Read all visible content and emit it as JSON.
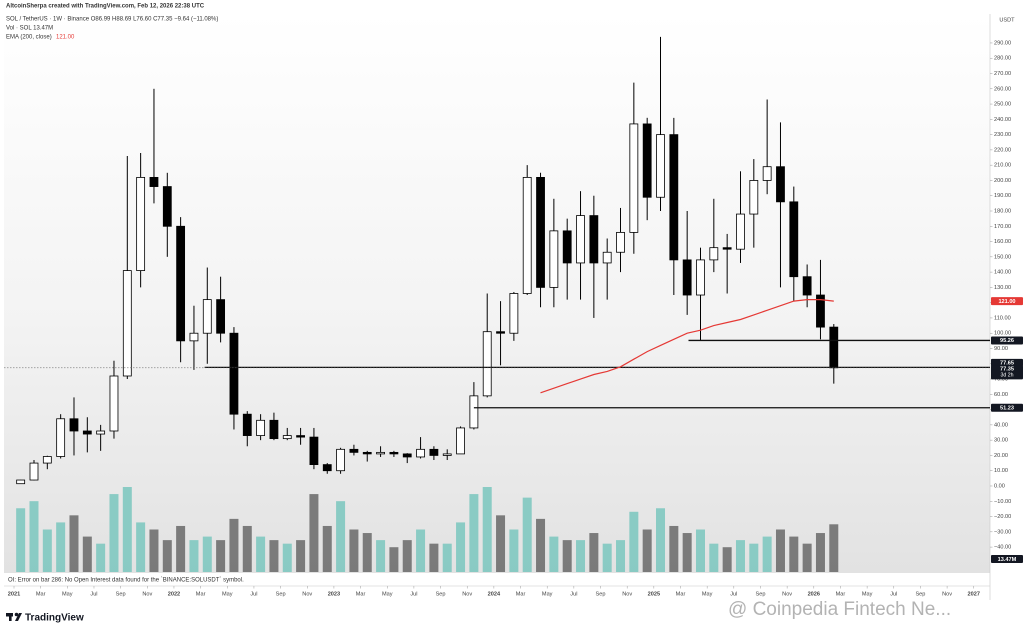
{
  "chart_data": {
    "type": "candlestick",
    "attribution": "AltcoinSherpa created with TradingView.com, Feb 12, 2026 22:38 UTC",
    "symbol_line": "SOL / TetherUS · 1W · Binance  O86.99 H88.69 L76.60 C77.35 −9.64 (−11.08%)",
    "volume_line": "Vol · SOL 13.47M",
    "ema_name": "EMA (200, close)",
    "ema_value_label": "121.00",
    "currency": "USDT",
    "oi_note": "OI: Error on bar 286: No Open Interest data found for the `BINANCE:SOLUSDT` symbol.",
    "brand": "TradingView",
    "watermark": "@ Coinpedia Fintech Ne...",
    "countdown": "3d 2h",
    "up_color": "#ffffff",
    "down_color": "#000000",
    "ylim": [
      -56.3,
      308.3
    ],
    "xlim": [
      0,
      74
    ],
    "yticks": [
      {
        "value": -40,
        "label": "−40.00"
      },
      {
        "value": -30,
        "label": "−30.00"
      },
      {
        "value": -20,
        "label": "−20.00"
      },
      {
        "value": -10,
        "label": "−10.00"
      },
      {
        "value": 0,
        "label": "0.00"
      },
      {
        "value": 10,
        "label": "10.00"
      },
      {
        "value": 20,
        "label": "20.00"
      },
      {
        "value": 30,
        "label": "30.00"
      },
      {
        "value": 40,
        "label": "40.00"
      },
      {
        "value": 50,
        "label": "50.00"
      },
      {
        "value": 60,
        "label": "60.00"
      },
      {
        "value": 70,
        "label": "70.00"
      },
      {
        "value": 80,
        "label": "80.00"
      },
      {
        "value": 90,
        "label": "90.00"
      },
      {
        "value": 100,
        "label": "100.00"
      },
      {
        "value": 110,
        "label": "110.00"
      },
      {
        "value": 120,
        "label": "120.00"
      },
      {
        "value": 130,
        "label": "130.00"
      },
      {
        "value": 140,
        "label": "140.00"
      },
      {
        "value": 150,
        "label": "150.00"
      },
      {
        "value": 160,
        "label": "160.00"
      },
      {
        "value": 170,
        "label": "170.00"
      },
      {
        "value": 180,
        "label": "180.00"
      },
      {
        "value": 190,
        "label": "190.00"
      },
      {
        "value": 200,
        "label": "200.00"
      },
      {
        "value": 210,
        "label": "210.00"
      },
      {
        "value": 220,
        "label": "220.00"
      },
      {
        "value": 230,
        "label": "230.00"
      },
      {
        "value": 240,
        "label": "240.00"
      },
      {
        "value": 250,
        "label": "250.00"
      },
      {
        "value": 260,
        "label": "260.00"
      },
      {
        "value": 270,
        "label": "270.00"
      },
      {
        "value": 280,
        "label": "280.00"
      },
      {
        "value": 290,
        "label": "290.00"
      }
    ],
    "xticks": [
      {
        "value": 0,
        "label": "2021"
      },
      {
        "value": 2,
        "label": "Mar"
      },
      {
        "value": 4,
        "label": "May"
      },
      {
        "value": 6,
        "label": "Jul"
      },
      {
        "value": 8,
        "label": "Sep"
      },
      {
        "value": 10,
        "label": "Nov"
      },
      {
        "value": 12,
        "label": "2022"
      },
      {
        "value": 14,
        "label": "Mar"
      },
      {
        "value": 16,
        "label": "May"
      },
      {
        "value": 18,
        "label": "Jul"
      },
      {
        "value": 20,
        "label": "Sep"
      },
      {
        "value": 22,
        "label": "Nov"
      },
      {
        "value": 24,
        "label": "2023"
      },
      {
        "value": 26,
        "label": "Mar"
      },
      {
        "value": 28,
        "label": "May"
      },
      {
        "value": 30,
        "label": "Jul"
      },
      {
        "value": 32,
        "label": "Sep"
      },
      {
        "value": 34,
        "label": "Nov"
      },
      {
        "value": 36,
        "label": "2024"
      },
      {
        "value": 38,
        "label": "Mar"
      },
      {
        "value": 40,
        "label": "May"
      },
      {
        "value": 42,
        "label": "Jul"
      },
      {
        "value": 44,
        "label": "Sep"
      },
      {
        "value": 46,
        "label": "Nov"
      },
      {
        "value": 48,
        "label": "2025"
      },
      {
        "value": 50,
        "label": "Mar"
      },
      {
        "value": 52,
        "label": "May"
      },
      {
        "value": 54,
        "label": "Jul"
      },
      {
        "value": 56,
        "label": "Sep"
      },
      {
        "value": 58,
        "label": "Nov"
      },
      {
        "value": 60,
        "label": "2026"
      },
      {
        "value": 62,
        "label": "Mar"
      },
      {
        "value": 64,
        "label": "May"
      },
      {
        "value": 66,
        "label": "Jul"
      },
      {
        "value": 68,
        "label": "Sep"
      },
      {
        "value": 70,
        "label": "Nov"
      },
      {
        "value": 72,
        "label": "2027"
      }
    ],
    "open": [
      1.5,
      3.9,
      15,
      19.3,
      44,
      36,
      34,
      36,
      72,
      141,
      202,
      196,
      170,
      95,
      100,
      122,
      100,
      47,
      33,
      43,
      31,
      33,
      32,
      14,
      10,
      24,
      22,
      21,
      22,
      21,
      19,
      24,
      20,
      21,
      38,
      59,
      101,
      100,
      126,
      202,
      130,
      167,
      146,
      177,
      146,
      153,
      166,
      237,
      189,
      230,
      148,
      125,
      148,
      156,
      155,
      178,
      200,
      209,
      186,
      137,
      125,
      104
    ],
    "high": [
      4.0,
      17,
      19.8,
      47,
      58,
      45,
      40,
      82,
      216,
      218,
      260,
      205,
      176,
      118,
      143,
      137,
      104,
      49,
      47,
      48,
      38,
      38,
      38,
      15,
      25,
      27,
      23,
      26,
      23,
      21.5,
      32,
      26,
      24,
      39,
      68,
      126,
      121,
      127,
      210,
      205,
      188,
      175,
      193,
      190,
      162,
      182,
      264,
      241,
      294,
      241,
      180,
      156,
      188,
      165,
      206,
      214,
      253,
      238,
      196,
      145,
      148,
      106
    ],
    "low": [
      1.4,
      3.6,
      11,
      18,
      20,
      22,
      23,
      31,
      70,
      130,
      185,
      150,
      81,
      76,
      80,
      94,
      37,
      26,
      30,
      30,
      30,
      27,
      11,
      8,
      8,
      20,
      16,
      19,
      19,
      15,
      18,
      17,
      17,
      21,
      37,
      58,
      79,
      95,
      125,
      117,
      117,
      122,
      122,
      110,
      122,
      140,
      152,
      174,
      180,
      125,
      112,
      95,
      140,
      126,
      146,
      156,
      191,
      130,
      121,
      117,
      96,
      67
    ],
    "close": [
      3.9,
      15,
      19.3,
      44,
      36,
      34,
      36,
      72,
      141,
      202,
      196,
      170,
      95,
      100,
      122,
      100,
      47,
      33,
      43,
      31,
      33,
      32,
      14,
      10,
      24,
      22,
      21,
      22,
      21,
      19,
      24,
      20,
      21,
      38,
      59,
      101,
      100,
      126,
      202,
      130,
      167,
      146,
      177,
      146,
      153,
      166,
      237,
      189,
      230,
      148,
      125,
      148,
      156,
      155,
      178,
      200,
      209,
      186,
      137,
      125,
      104,
      77.35
    ],
    "ema": {
      "name": "EMA (200, close)",
      "color": "#e53935",
      "values": [
        null,
        null,
        null,
        null,
        null,
        null,
        null,
        null,
        null,
        null,
        null,
        null,
        null,
        null,
        null,
        null,
        null,
        null,
        null,
        null,
        null,
        null,
        null,
        null,
        null,
        null,
        null,
        null,
        null,
        null,
        null,
        null,
        null,
        null,
        null,
        null,
        null,
        null,
        null,
        61,
        64,
        67,
        70,
        73,
        75,
        78,
        83,
        88,
        92,
        96,
        100,
        102,
        105,
        107,
        109,
        112,
        115,
        118,
        121,
        122,
        122,
        121
      ]
    },
    "ema_last": {
      "value": 121,
      "label": "121.00"
    },
    "volume": {
      "up_color": "#7fc8c0",
      "down_color": "#6f6f6f",
      "label": "13.47M",
      "values": [
        18,
        20,
        12,
        14,
        16,
        10,
        8,
        22,
        24,
        14,
        12,
        9,
        13,
        9,
        10,
        9,
        15,
        13,
        10,
        9,
        8,
        9,
        22,
        13,
        20,
        12,
        11,
        9,
        7,
        9,
        12,
        8,
        8,
        14,
        22,
        24,
        16,
        12,
        21,
        15,
        10,
        9,
        9,
        11,
        8,
        9,
        17,
        12,
        18,
        13,
        11,
        12,
        8,
        7,
        9,
        8,
        10,
        12,
        10,
        8,
        11,
        13.47
      ]
    },
    "levels": [
      {
        "value": 95.26,
        "start": 50.6
      },
      {
        "value": 77.65,
        "start": 14.3
      },
      {
        "value": 51.23,
        "start": 34.5
      }
    ]
  }
}
